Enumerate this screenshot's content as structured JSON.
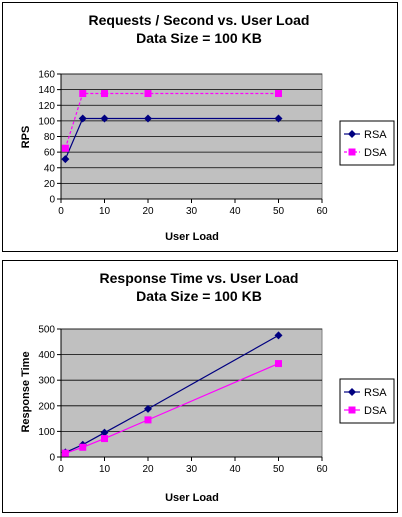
{
  "chart_data": [
    {
      "type": "line",
      "title": "Requests / Second  vs.  User Load",
      "subtitle": "Data Size = 100 KB",
      "xlabel": "User Load",
      "ylabel": "RPS",
      "xlim": [
        0,
        60
      ],
      "ylim": [
        0,
        160
      ],
      "xticks": [
        "0",
        "10",
        "20",
        "30",
        "40",
        "50",
        "60"
      ],
      "yticks": [
        "0",
        "20",
        "40",
        "60",
        "80",
        "100",
        "120",
        "140",
        "160"
      ],
      "grid": true,
      "legend_position": "right",
      "plot_background": "#c0c0c0",
      "series": [
        {
          "name": "RSA",
          "color": "#000080",
          "marker": "diamond",
          "dashed": false,
          "x": [
            1,
            5,
            10,
            20,
            50
          ],
          "y": [
            51,
            103,
            103,
            103,
            103
          ]
        },
        {
          "name": "DSA",
          "color": "#ff00ff",
          "marker": "square",
          "dashed": true,
          "x": [
            1,
            5,
            10,
            20,
            50
          ],
          "y": [
            65,
            135,
            135,
            135,
            135
          ]
        }
      ]
    },
    {
      "type": "line",
      "title": "Response Time  vs.  User Load",
      "subtitle": "Data Size = 100 KB",
      "xlabel": "User Load",
      "ylabel": "Response Time",
      "xlim": [
        0,
        60
      ],
      "ylim": [
        0,
        500
      ],
      "xticks": [
        "0",
        "10",
        "20",
        "30",
        "40",
        "50",
        "60"
      ],
      "yticks": [
        "0",
        "100",
        "200",
        "300",
        "400",
        "500"
      ],
      "grid": true,
      "legend_position": "right",
      "plot_background": "#c0c0c0",
      "series": [
        {
          "name": "RSA",
          "color": "#000080",
          "marker": "diamond",
          "dashed": false,
          "x": [
            1,
            5,
            10,
            20,
            50
          ],
          "y": [
            18,
            48,
            95,
            188,
            475
          ]
        },
        {
          "name": "DSA",
          "color": "#ff00ff",
          "marker": "square",
          "dashed": false,
          "x": [
            1,
            5,
            10,
            20,
            50
          ],
          "y": [
            15,
            38,
            72,
            145,
            365
          ]
        }
      ]
    }
  ]
}
